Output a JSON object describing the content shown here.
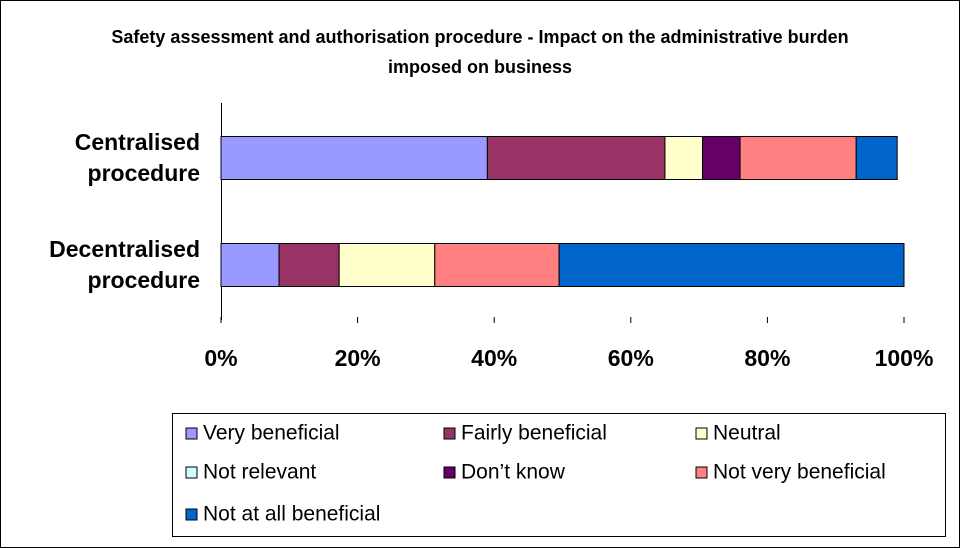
{
  "chart_data": {
    "type": "stacked-bar-horizontal",
    "title": "Safety assessment and authorisation procedure - Impact on the administrative burden imposed on business",
    "categories": [
      "Centralised procedure",
      "Decentralised procedure"
    ],
    "series": [
      {
        "name": "Very beneficial",
        "color": "#9999ff",
        "values": [
          39,
          8.5
        ]
      },
      {
        "name": "Fairly beneficial",
        "color": "#993366",
        "values": [
          26,
          8.8
        ]
      },
      {
        "name": "Neutral",
        "color": "#ffffcc",
        "values": [
          5.5,
          14
        ]
      },
      {
        "name": "Not relevant",
        "color": "#ccffff",
        "values": [
          0,
          0
        ]
      },
      {
        "name": "Don’t know",
        "color": "#660066",
        "values": [
          5.5,
          0
        ]
      },
      {
        "name": "Not very beneficial",
        "color": "#ff8080",
        "values": [
          17,
          18.2
        ]
      },
      {
        "name": "Not at all beneficial",
        "color": "#0066cc",
        "values": [
          6,
          50.5
        ]
      }
    ],
    "xlim": [
      0,
      100
    ],
    "xticks": [
      {
        "value": 0,
        "label": "0%"
      },
      {
        "value": 20,
        "label": "20%"
      },
      {
        "value": 40,
        "label": "40%"
      },
      {
        "value": 60,
        "label": "60%"
      },
      {
        "value": 80,
        "label": "80%"
      },
      {
        "value": 100,
        "label": "100%"
      }
    ],
    "legend": "bottom"
  }
}
